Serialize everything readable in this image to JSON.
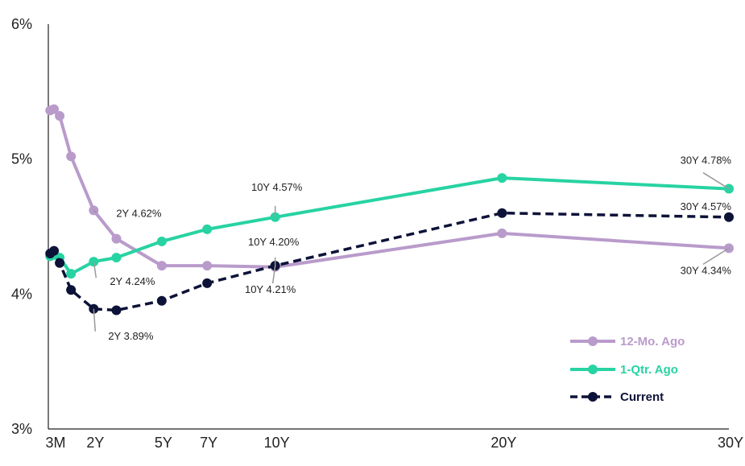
{
  "chart_data": {
    "type": "line",
    "title": "",
    "xlabel": "",
    "ylabel": "",
    "x_ticks": [
      {
        "label": "3M",
        "x": 0.25
      },
      {
        "label": "2Y",
        "x": 2
      },
      {
        "label": "5Y",
        "x": 5
      },
      {
        "label": "7Y",
        "x": 7
      },
      {
        "label": "10Y",
        "x": 10
      },
      {
        "label": "20Y",
        "x": 20
      },
      {
        "label": "30Y",
        "x": 30
      }
    ],
    "y_ticks": [
      {
        "label": "3%",
        "y": 3
      },
      {
        "label": "4%",
        "y": 4
      },
      {
        "label": "5%",
        "y": 5
      },
      {
        "label": "6%",
        "y": 6
      }
    ],
    "ylim": [
      3,
      6
    ],
    "grid": false,
    "legend_position": "bottom-right",
    "series": [
      {
        "name": "12-Mo. Ago",
        "color": "#b99bcb",
        "dashed": false,
        "points": [
          {
            "x": 0.08,
            "y": 5.36
          },
          {
            "x": 0.25,
            "y": 5.37
          },
          {
            "x": 0.5,
            "y": 5.32
          },
          {
            "x": 1,
            "y": 5.02
          },
          {
            "x": 2,
            "y": 4.62
          },
          {
            "x": 3,
            "y": 4.41
          },
          {
            "x": 5,
            "y": 4.21
          },
          {
            "x": 7,
            "y": 4.21
          },
          {
            "x": 10,
            "y": 4.2
          },
          {
            "x": 20,
            "y": 4.45
          },
          {
            "x": 30,
            "y": 4.34
          }
        ]
      },
      {
        "name": "1-Qtr. Ago",
        "color": "#27d3a2",
        "dashed": false,
        "points": [
          {
            "x": 0.08,
            "y": 4.28
          },
          {
            "x": 0.25,
            "y": 4.29
          },
          {
            "x": 0.5,
            "y": 4.27
          },
          {
            "x": 1,
            "y": 4.15
          },
          {
            "x": 2,
            "y": 4.24
          },
          {
            "x": 3,
            "y": 4.27
          },
          {
            "x": 5,
            "y": 4.39
          },
          {
            "x": 7,
            "y": 4.48
          },
          {
            "x": 10,
            "y": 4.57
          },
          {
            "x": 20,
            "y": 4.86
          },
          {
            "x": 30,
            "y": 4.78
          }
        ]
      },
      {
        "name": "Current",
        "color": "#0d1238",
        "dashed": true,
        "points": [
          {
            "x": 0.08,
            "y": 4.3
          },
          {
            "x": 0.25,
            "y": 4.32
          },
          {
            "x": 0.5,
            "y": 4.23
          },
          {
            "x": 1,
            "y": 4.03
          },
          {
            "x": 2,
            "y": 3.89
          },
          {
            "x": 3,
            "y": 3.88
          },
          {
            "x": 5,
            "y": 3.95
          },
          {
            "x": 7,
            "y": 4.08
          },
          {
            "x": 10,
            "y": 4.21
          },
          {
            "x": 20,
            "y": 4.6
          },
          {
            "x": 30,
            "y": 4.57
          }
        ]
      }
    ],
    "annotations": [
      {
        "text": "2Y 4.62%",
        "series": "12-Mo. Ago",
        "x": 2,
        "y": 4.62
      },
      {
        "text": "2Y 4.24%",
        "series": "1-Qtr. Ago",
        "x": 2,
        "y": 4.24
      },
      {
        "text": "2Y 3.89%",
        "series": "Current",
        "x": 2,
        "y": 3.89
      },
      {
        "text": "10Y 4.57%",
        "series": "1-Qtr. Ago",
        "x": 10,
        "y": 4.57
      },
      {
        "text": "10Y 4.20%",
        "series": "12-Mo. Ago",
        "x": 10,
        "y": 4.2
      },
      {
        "text": "10Y 4.21%",
        "series": "Current",
        "x": 10,
        "y": 4.21
      },
      {
        "text": "30Y 4.78%",
        "series": "1-Qtr. Ago",
        "x": 30,
        "y": 4.78
      },
      {
        "text": "30Y 4.57%",
        "series": "Current",
        "x": 30,
        "y": 4.57
      },
      {
        "text": "30Y 4.34%",
        "series": "12-Mo. Ago",
        "x": 30,
        "y": 4.34
      }
    ]
  }
}
